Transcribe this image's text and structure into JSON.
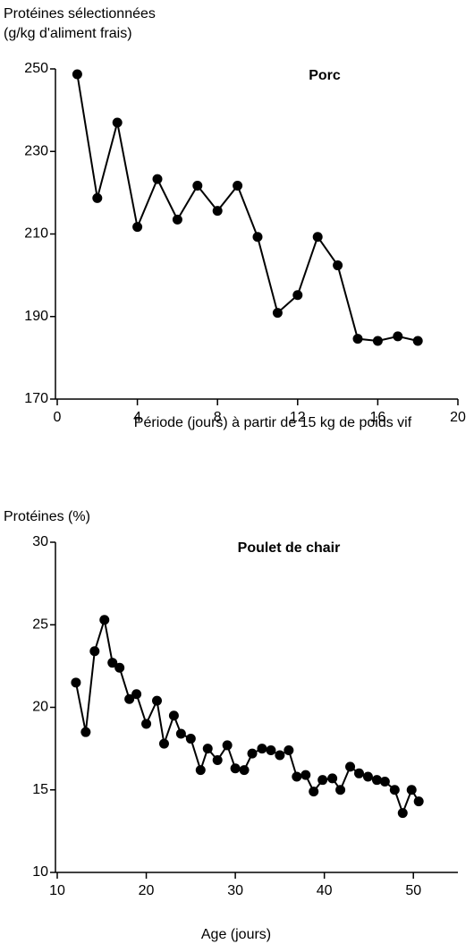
{
  "chart_data": [
    {
      "type": "line",
      "title": "Porc",
      "ylabel": [
        "Protéines sélectionnées",
        "(g/kg d'aliment frais)"
      ],
      "xlabel": "Période (jours) à partir de 15 kg de poids vif",
      "x": [
        1,
        2,
        3,
        4,
        5,
        6,
        7,
        8,
        9,
        10,
        11,
        12,
        13,
        14,
        15,
        16,
        17,
        18
      ],
      "series": [
        {
          "color": "#000000",
          "values": [
            248.7,
            218.7,
            237,
            211.7,
            223.3,
            213.5,
            221.7,
            215.6,
            221.7,
            209.3,
            190.9,
            195.2,
            209.3,
            202.4,
            184.6,
            184.1,
            185.2,
            184.1
          ]
        }
      ],
      "xlim": [
        0,
        20
      ],
      "xticks": [
        0,
        4,
        8,
        12,
        16,
        20
      ],
      "ylim": [
        170,
        250
      ],
      "yticks": [
        170,
        190,
        210,
        230,
        250
      ]
    },
    {
      "type": "line",
      "title": "Poulet de chair",
      "ylabel": [
        "Protéines (%)"
      ],
      "xlabel": "Age (jours)",
      "x": [
        12.1,
        13.2,
        14.2,
        15.3,
        16.2,
        17,
        18.1,
        18.9,
        20,
        21.2,
        22,
        23.1,
        23.9,
        25,
        26.1,
        26.9,
        28,
        29.1,
        30,
        31,
        31.9,
        33,
        34,
        35,
        36,
        36.9,
        37.9,
        38.8,
        39.8,
        40.9,
        41.8,
        42.9,
        43.9,
        44.9,
        45.9,
        46.8,
        47.9,
        48.8,
        49.8,
        50.6
      ],
      "series": [
        {
          "color": "#000000",
          "values": [
            21.5,
            18.5,
            23.4,
            25.3,
            22.7,
            22.4,
            20.5,
            20.8,
            19.0,
            20.4,
            17.8,
            19.5,
            18.4,
            18.1,
            16.2,
            17.5,
            16.8,
            17.7,
            16.3,
            16.2,
            17.2,
            17.5,
            17.4,
            17.1,
            17.4,
            15.8,
            15.9,
            14.9,
            15.6,
            15.7,
            15.0,
            16.4,
            16.0,
            15.8,
            15.6,
            15.5,
            15.0,
            13.6,
            15.0,
            14.3
          ]
        }
      ],
      "xlim": [
        10,
        55
      ],
      "xticks": [
        10,
        20,
        30,
        40,
        50
      ],
      "ylim": [
        10,
        30
      ],
      "yticks": [
        10,
        15,
        20,
        25,
        30
      ]
    }
  ]
}
